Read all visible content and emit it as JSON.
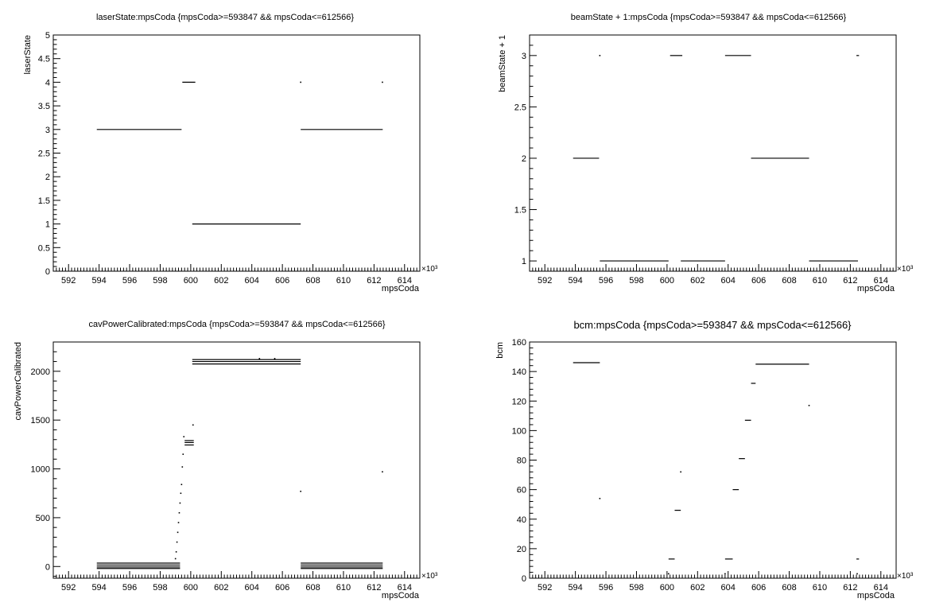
{
  "chart_data": [
    {
      "type": "scatter",
      "title": "laserState:mpsCoda {mpsCoda>=593847 && mpsCoda<=612566}",
      "xlabel": "mpsCoda",
      "ylabel": "laserState",
      "x_exponent": "×10³",
      "xlim": [
        591.0,
        615.0
      ],
      "ylim": [
        0,
        5
      ],
      "xticks": [
        592,
        594,
        596,
        598,
        600,
        602,
        604,
        606,
        608,
        610,
        612,
        614
      ],
      "yticks": [
        0,
        0.5,
        1,
        1.5,
        2,
        2.5,
        3,
        3.5,
        4,
        4.5,
        5
      ],
      "grid": false,
      "segments": [
        {
          "x": [
            593.85,
            599.4
          ],
          "y": 3
        },
        {
          "x": [
            599.45,
            600.3
          ],
          "y": 4
        },
        {
          "x": [
            600.1,
            607.2
          ],
          "y": 1
        },
        {
          "x": [
            607.2,
            612.57
          ],
          "y": 3
        }
      ],
      "points": [
        {
          "x": 607.2,
          "y": 4
        },
        {
          "x": 612.55,
          "y": 4
        }
      ]
    },
    {
      "type": "scatter",
      "title": "beamState + 1:mpsCoda {mpsCoda>=593847 && mpsCoda<=612566}",
      "xlabel": "mpsCoda",
      "ylabel": "beamState + 1",
      "x_exponent": "×10³",
      "xlim": [
        591.0,
        615.0
      ],
      "ylim": [
        0.9,
        3.2
      ],
      "xticks": [
        592,
        594,
        596,
        598,
        600,
        602,
        604,
        606,
        608,
        610,
        612,
        614
      ],
      "yticks": [
        1,
        1.5,
        2,
        2.5,
        3
      ],
      "grid": false,
      "segments": [
        {
          "x": [
            593.85,
            595.55
          ],
          "y": 2
        },
        {
          "x": [
            595.6,
            600.1
          ],
          "y": 1
        },
        {
          "x": [
            600.2,
            601.0
          ],
          "y": 3
        },
        {
          "x": [
            600.9,
            603.8
          ],
          "y": 1
        },
        {
          "x": [
            603.8,
            605.5
          ],
          "y": 3
        },
        {
          "x": [
            605.5,
            609.3
          ],
          "y": 2
        },
        {
          "x": [
            609.3,
            612.5
          ],
          "y": 1
        },
        {
          "x": [
            612.4,
            612.57
          ],
          "y": 3
        }
      ],
      "points": [
        {
          "x": 595.6,
          "y": 3
        }
      ]
    },
    {
      "type": "scatter",
      "title": "cavPowerCalibrated:mpsCoda {mpsCoda>=593847 && mpsCoda<=612566}",
      "xlabel": "mpsCoda",
      "ylabel": "cavPowerCalibrated",
      "x_exponent": "×10³",
      "xlim": [
        591.0,
        615.0
      ],
      "ylim": [
        -120,
        2300
      ],
      "xticks": [
        592,
        594,
        596,
        598,
        600,
        602,
        604,
        606,
        608,
        610,
        612,
        614
      ],
      "yticks": [
        0,
        500,
        1000,
        1500,
        2000
      ],
      "grid": false,
      "segments": [
        {
          "x": [
            593.85,
            599.3
          ],
          "y": 35
        },
        {
          "x": [
            593.85,
            599.3
          ],
          "y": 15
        },
        {
          "x": [
            593.85,
            599.3
          ],
          "y": -5
        },
        {
          "x": [
            593.85,
            599.3
          ],
          "y": -20
        },
        {
          "x": [
            599.6,
            600.2
          ],
          "y": 1290
        },
        {
          "x": [
            599.6,
            600.2
          ],
          "y": 1270
        },
        {
          "x": [
            599.6,
            600.2
          ],
          "y": 1245
        },
        {
          "x": [
            600.1,
            607.2
          ],
          "y": 2120
        },
        {
          "x": [
            600.1,
            607.2
          ],
          "y": 2100
        },
        {
          "x": [
            600.1,
            607.2
          ],
          "y": 2075
        },
        {
          "x": [
            607.2,
            612.57
          ],
          "y": 35
        },
        {
          "x": [
            607.2,
            612.57
          ],
          "y": 15
        },
        {
          "x": [
            607.2,
            612.57
          ],
          "y": -5
        },
        {
          "x": [
            607.2,
            612.57
          ],
          "y": -20
        }
      ],
      "points": [
        {
          "x": 599.0,
          "y": 80
        },
        {
          "x": 599.05,
          "y": 150
        },
        {
          "x": 599.1,
          "y": 250
        },
        {
          "x": 599.15,
          "y": 350
        },
        {
          "x": 599.2,
          "y": 450
        },
        {
          "x": 599.25,
          "y": 550
        },
        {
          "x": 599.3,
          "y": 650
        },
        {
          "x": 599.35,
          "y": 750
        },
        {
          "x": 599.4,
          "y": 840
        },
        {
          "x": 599.45,
          "y": 1020
        },
        {
          "x": 599.5,
          "y": 1150
        },
        {
          "x": 599.55,
          "y": 1330
        },
        {
          "x": 600.15,
          "y": 1450
        },
        {
          "x": 607.2,
          "y": 770
        },
        {
          "x": 612.55,
          "y": 970
        },
        {
          "x": 604.5,
          "y": 2130
        },
        {
          "x": 605.5,
          "y": 2130
        }
      ]
    },
    {
      "type": "scatter",
      "title": "bcm:mpsCoda {mpsCoda>=593847 && mpsCoda<=612566}",
      "xlabel": "mpsCoda",
      "ylabel": "bcm",
      "x_exponent": "×10³",
      "xlim": [
        591.0,
        615.0
      ],
      "ylim": [
        0,
        160
      ],
      "xticks": [
        592,
        594,
        596,
        598,
        600,
        602,
        604,
        606,
        608,
        610,
        612,
        614
      ],
      "yticks": [
        0,
        20,
        40,
        60,
        80,
        100,
        120,
        140,
        160
      ],
      "grid": false,
      "segments": [
        {
          "x": [
            593.85,
            595.6
          ],
          "y": 146
        },
        {
          "x": [
            600.1,
            600.5
          ],
          "y": 13
        },
        {
          "x": [
            600.5,
            600.9
          ],
          "y": 46
        },
        {
          "x": [
            603.8,
            604.3
          ],
          "y": 13
        },
        {
          "x": [
            604.3,
            604.7
          ],
          "y": 60
        },
        {
          "x": [
            604.7,
            605.1
          ],
          "y": 81
        },
        {
          "x": [
            605.1,
            605.5
          ],
          "y": 107
        },
        {
          "x": [
            605.5,
            605.8
          ],
          "y": 132
        },
        {
          "x": [
            605.8,
            609.3
          ],
          "y": 145
        },
        {
          "x": [
            612.4,
            612.57
          ],
          "y": 13
        }
      ],
      "points": [
        {
          "x": 595.6,
          "y": 54
        },
        {
          "x": 600.9,
          "y": 72
        },
        {
          "x": 609.3,
          "y": 117
        },
        {
          "x": 600.1,
          "y": 3
        },
        {
          "x": 603.8,
          "y": 3
        },
        {
          "x": 612.45,
          "y": 3
        }
      ]
    }
  ]
}
